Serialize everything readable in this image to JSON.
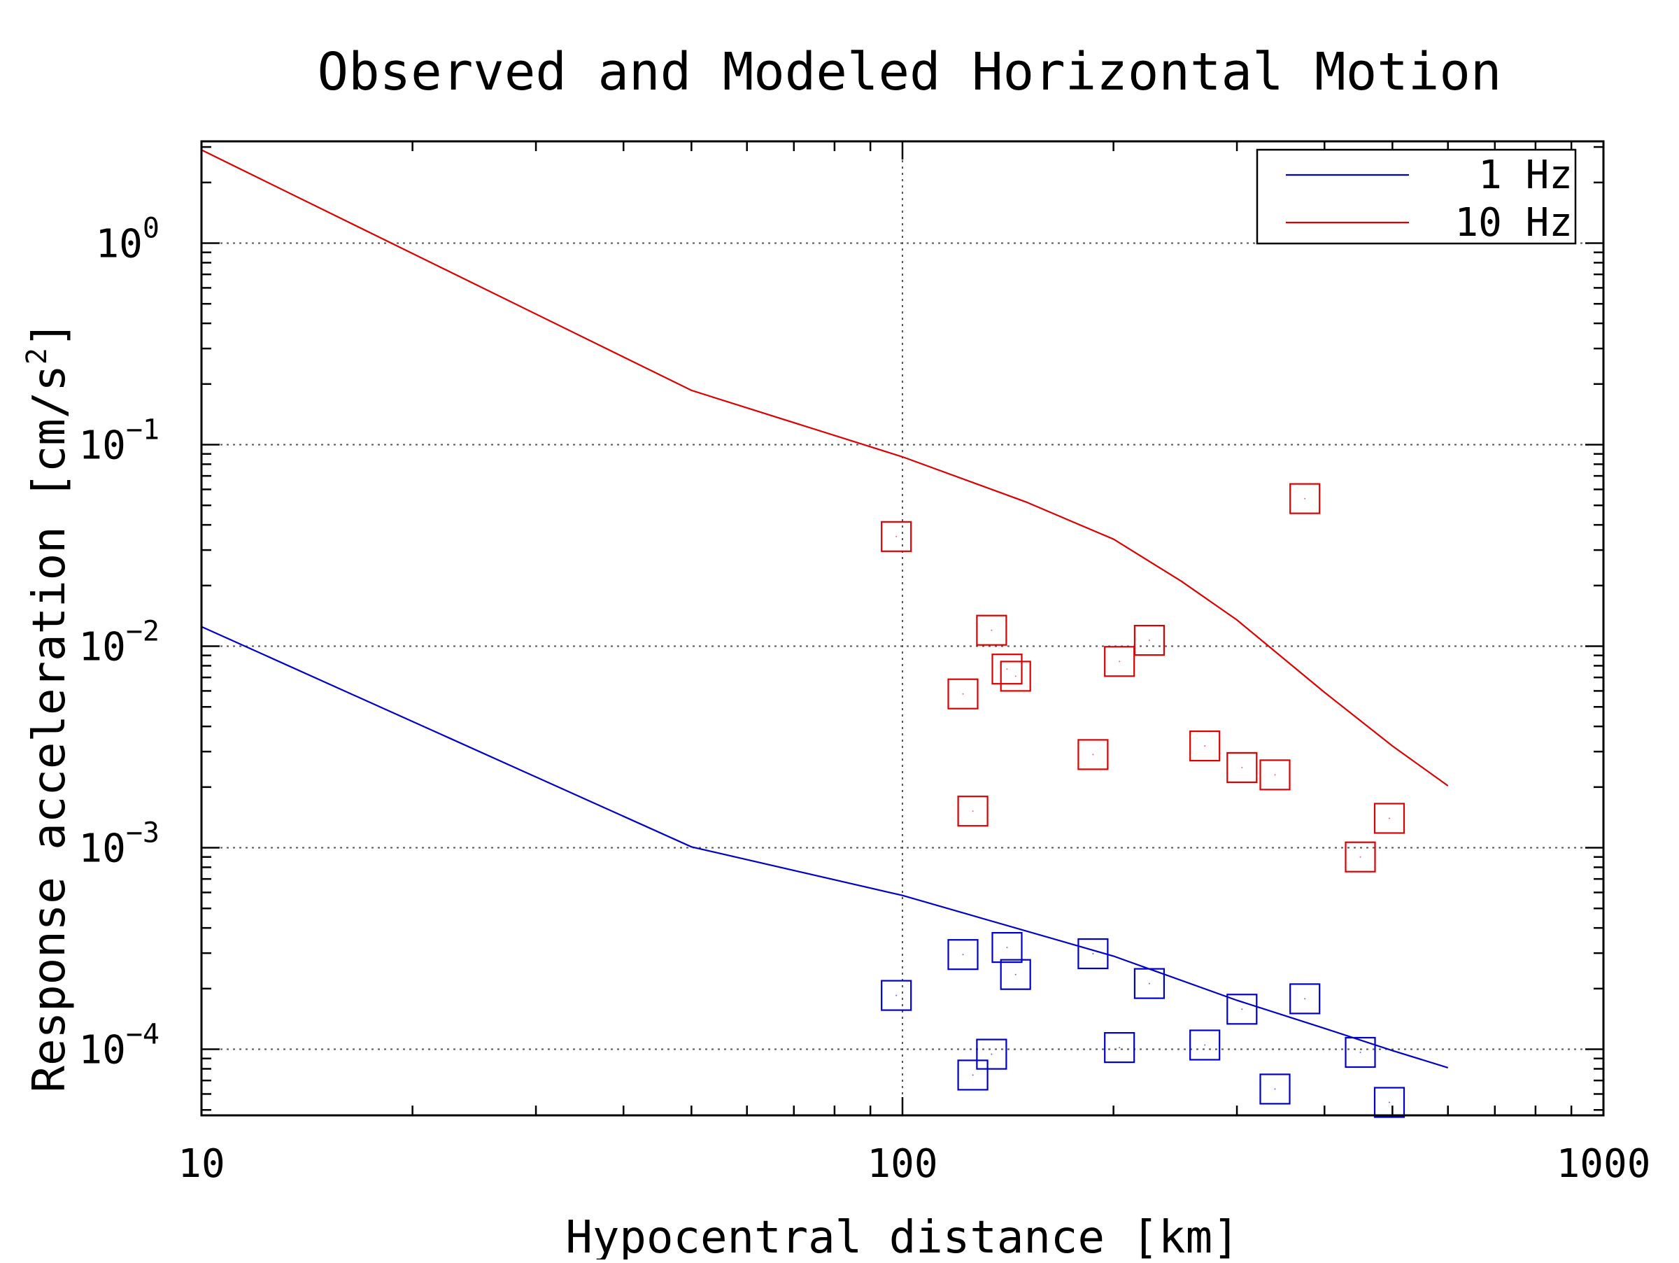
{
  "chart_data": {
    "type": "scatter",
    "title": "Observed and Modeled Horizontal Motion",
    "xlabel": "Hypocentral distance [km]",
    "ylabel": "Response acceleration [cm/s",
    "ylabel_sup": "2",
    "ylabel_end": "]",
    "x_scale": "log",
    "y_scale": "log",
    "xlim": [
      10,
      1000
    ],
    "ylim": [
      4.7e-05,
      3.2
    ],
    "grid": true,
    "legend_position": "top-right",
    "x_ticks": [
      {
        "value": 10,
        "label": "10"
      },
      {
        "value": 100,
        "label": "100"
      },
      {
        "value": 1000,
        "label": "1000"
      }
    ],
    "y_ticks": [
      {
        "value": 1,
        "base": "10",
        "exp": "0"
      },
      {
        "value": 0.1,
        "base": "10",
        "exp": "−1"
      },
      {
        "value": 0.01,
        "base": "10",
        "exp": "−2"
      },
      {
        "value": 0.001,
        "base": "10",
        "exp": "−3"
      },
      {
        "value": 0.0001,
        "base": "10",
        "exp": "−4"
      }
    ],
    "series": [
      {
        "name": "1 Hz",
        "color": "#0000cc",
        "model": {
          "x": [
            10,
            50,
            100,
            200,
            300,
            400,
            500,
            600
          ],
          "y": [
            0.0125,
            0.00101,
            0.00058,
            0.00029,
            0.000175,
            0.000127,
            9.85e-05,
            8.1e-05
          ]
        },
        "observed": {
          "x": [
            98,
            122,
            126,
            134,
            141,
            145,
            187,
            204,
            225,
            270,
            305,
            340,
            375,
            450,
            495
          ],
          "y": [
            0.000185,
            0.000295,
            7.45e-05,
            9.45e-05,
            0.00032,
            0.000235,
            0.000298,
            0.000102,
            0.000212,
            0.000105,
            0.000158,
            6.35e-05,
            0.000178,
            9.65e-05,
            5.45e-05
          ]
        }
      },
      {
        "name": "10 Hz",
        "color": "#dd0000",
        "model": {
          "x": [
            10,
            50,
            100,
            150,
            200,
            250,
            300,
            400,
            500,
            600
          ],
          "y": [
            2.9,
            0.186,
            0.087,
            0.052,
            0.034,
            0.021,
            0.0135,
            0.0059,
            0.0032,
            0.00203
          ]
        },
        "observed": {
          "x": [
            98,
            122,
            126,
            134,
            141,
            145,
            187,
            204,
            225,
            270,
            305,
            340,
            375,
            450,
            495
          ],
          "y": [
            0.035,
            0.0058,
            0.00152,
            0.012,
            0.0077,
            0.0071,
            0.0029,
            0.0084,
            0.0107,
            0.0032,
            0.0025,
            0.0023,
            0.054,
            0.0009,
            0.0014
          ]
        }
      }
    ]
  }
}
